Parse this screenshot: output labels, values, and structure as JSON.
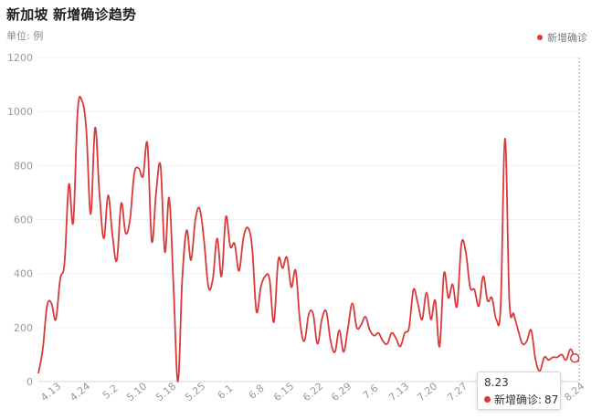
{
  "header": {
    "title": "新加坡 新增确诊趋势",
    "unit": "单位: 例"
  },
  "legend": {
    "label": "新增确诊",
    "color": "#d93a3a"
  },
  "tooltip": {
    "date": "8.23",
    "series_label": "新增确诊:",
    "value": "87"
  },
  "chart_data": {
    "type": "line",
    "title": "新加坡 新增确诊趋势",
    "ylabel": "单位: 例",
    "ylim": [
      0,
      1200
    ],
    "yticks": [
      "0",
      "200",
      "400",
      "600",
      "800",
      "1000",
      "1200"
    ],
    "xticks": [
      "4.13",
      "4.24",
      "5.2",
      "5.10",
      "5.18",
      "5.25",
      "6.1",
      "6.8",
      "6.15",
      "6.22",
      "6.29",
      "7.6",
      "7.13",
      "7.20",
      "7.27",
      "8.24"
    ],
    "grid": true,
    "legend_position": "top-right",
    "color": "#d93a3a",
    "series": [
      {
        "name": "新增确诊",
        "values": [
          30,
          120,
          280,
          290,
          230,
          380,
          440,
          730,
          590,
          1000,
          1040,
          930,
          620,
          940,
          700,
          530,
          690,
          540,
          450,
          660,
          550,
          600,
          770,
          790,
          760,
          880,
          520,
          700,
          800,
          480,
          680,
          350,
          0,
          380,
          560,
          450,
          600,
          640,
          520,
          350,
          380,
          530,
          390,
          610,
          500,
          510,
          410,
          530,
          570,
          500,
          260,
          350,
          390,
          380,
          220,
          450,
          420,
          460,
          350,
          410,
          220,
          150,
          250,
          250,
          140,
          230,
          260,
          150,
          110,
          190,
          110,
          200,
          290,
          200,
          210,
          240,
          190,
          170,
          180,
          150,
          140,
          180,
          160,
          130,
          180,
          200,
          340,
          290,
          230,
          330,
          230,
          300,
          130,
          400,
          310,
          360,
          280,
          510,
          480,
          350,
          340,
          280,
          390,
          300,
          310,
          230,
          280,
          900,
          300,
          250,
          190,
          140,
          150,
          190,
          80,
          40,
          90,
          80,
          90,
          90,
          100,
          80,
          120,
          87,
          75
        ]
      }
    ]
  }
}
